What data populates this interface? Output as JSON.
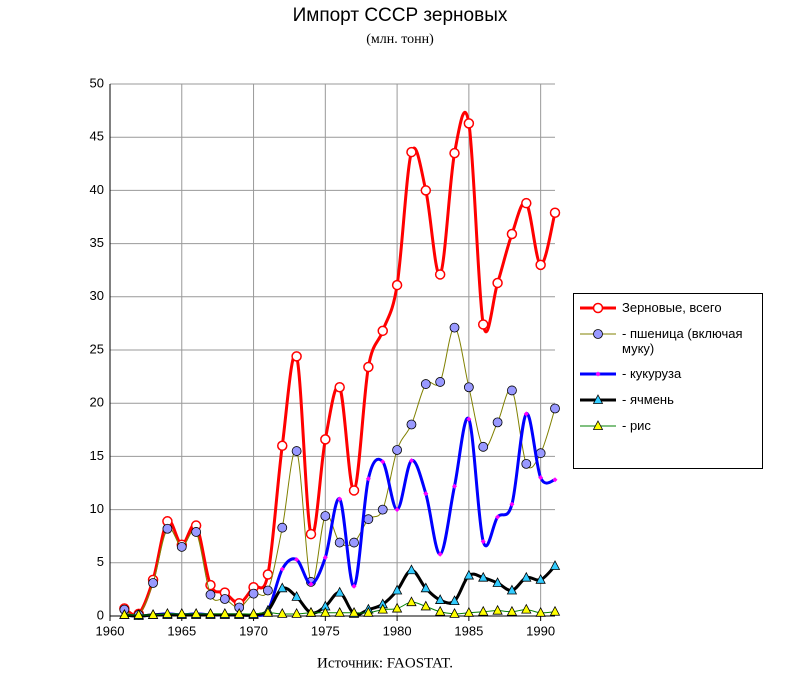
{
  "chart_data": {
    "type": "line",
    "title": "Импорт СССР зерновых",
    "subtitle": "(млн. тонн)",
    "source": "Источник: FAOSTAT.",
    "x": [
      1961,
      1962,
      1963,
      1964,
      1965,
      1966,
      1967,
      1968,
      1969,
      1970,
      1971,
      1972,
      1973,
      1974,
      1975,
      1976,
      1977,
      1978,
      1979,
      1980,
      1981,
      1982,
      1983,
      1984,
      1985,
      1986,
      1987,
      1988,
      1989,
      1990,
      1991
    ],
    "xlim": [
      1960,
      1991
    ],
    "xticks": [
      1960,
      1965,
      1970,
      1975,
      1980,
      1985,
      1990
    ],
    "ylim": [
      0,
      50
    ],
    "yticks": [
      0,
      5,
      10,
      15,
      20,
      25,
      30,
      35,
      40,
      45,
      50
    ],
    "grid": true,
    "legend": "right",
    "series": [
      {
        "name": "Зерновые, всего",
        "color": "#ff0000",
        "width": 3,
        "marker": "circle",
        "marker_color": "#ffffff",
        "values": [
          0.7,
          0.2,
          3.4,
          8.9,
          6.7,
          8.5,
          2.9,
          2.2,
          1.2,
          2.7,
          3.9,
          16.0,
          24.4,
          7.7,
          16.6,
          21.5,
          11.8,
          23.4,
          26.8,
          31.1,
          43.6,
          40.0,
          32.1,
          43.5,
          46.3,
          27.4,
          31.3,
          35.9,
          38.8,
          33.0,
          37.9
        ]
      },
      {
        "name": "- пшеница (включая муку)",
        "color": "#808000",
        "width": 1,
        "marker": "circle",
        "marker_color": "#9999ff",
        "values": [
          0.6,
          0.1,
          3.1,
          8.2,
          6.5,
          7.9,
          2.0,
          1.6,
          0.8,
          2.1,
          2.4,
          8.3,
          15.5,
          3.2,
          9.4,
          6.9,
          6.9,
          9.1,
          10.0,
          15.6,
          18.0,
          21.8,
          22.0,
          27.1,
          21.5,
          15.9,
          18.2,
          21.2,
          14.3,
          15.3,
          19.5
        ]
      },
      {
        "name": "- кукуруза",
        "color": "#0000ff",
        "width": 3,
        "marker": "diamond",
        "marker_color": "#ff00ff",
        "values": [
          0.1,
          0.0,
          0.1,
          0.2,
          0.1,
          0.2,
          0.1,
          0.1,
          0.1,
          0.1,
          0.5,
          4.4,
          5.3,
          3.0,
          5.5,
          11.0,
          2.8,
          12.9,
          14.5,
          10.0,
          14.6,
          11.5,
          5.8,
          12.2,
          18.5,
          7.0,
          9.3,
          10.5,
          19.0,
          13.0,
          12.8
        ]
      },
      {
        "name": "- ячмень",
        "color": "#000000",
        "width": 3,
        "marker": "triangle",
        "marker_color": "#33ccff",
        "values": [
          0.1,
          0.0,
          0.1,
          0.1,
          0.1,
          0.1,
          0.1,
          0.1,
          0.1,
          0.1,
          0.5,
          2.6,
          1.8,
          0.3,
          0.9,
          2.2,
          0.2,
          0.6,
          1.1,
          2.4,
          4.3,
          2.6,
          1.5,
          1.4,
          3.8,
          3.6,
          3.1,
          2.4,
          3.6,
          3.4,
          4.7
        ]
      },
      {
        "name": "- рис",
        "color": "#008000",
        "width": 1,
        "marker": "triangle",
        "marker_color": "#ffff00",
        "values": [
          0.1,
          0.1,
          0.1,
          0.2,
          0.2,
          0.2,
          0.2,
          0.2,
          0.2,
          0.2,
          0.3,
          0.2,
          0.2,
          0.3,
          0.3,
          0.3,
          0.3,
          0.3,
          0.6,
          0.7,
          1.3,
          0.9,
          0.4,
          0.2,
          0.3,
          0.4,
          0.5,
          0.4,
          0.6,
          0.3,
          0.4
        ]
      }
    ]
  }
}
